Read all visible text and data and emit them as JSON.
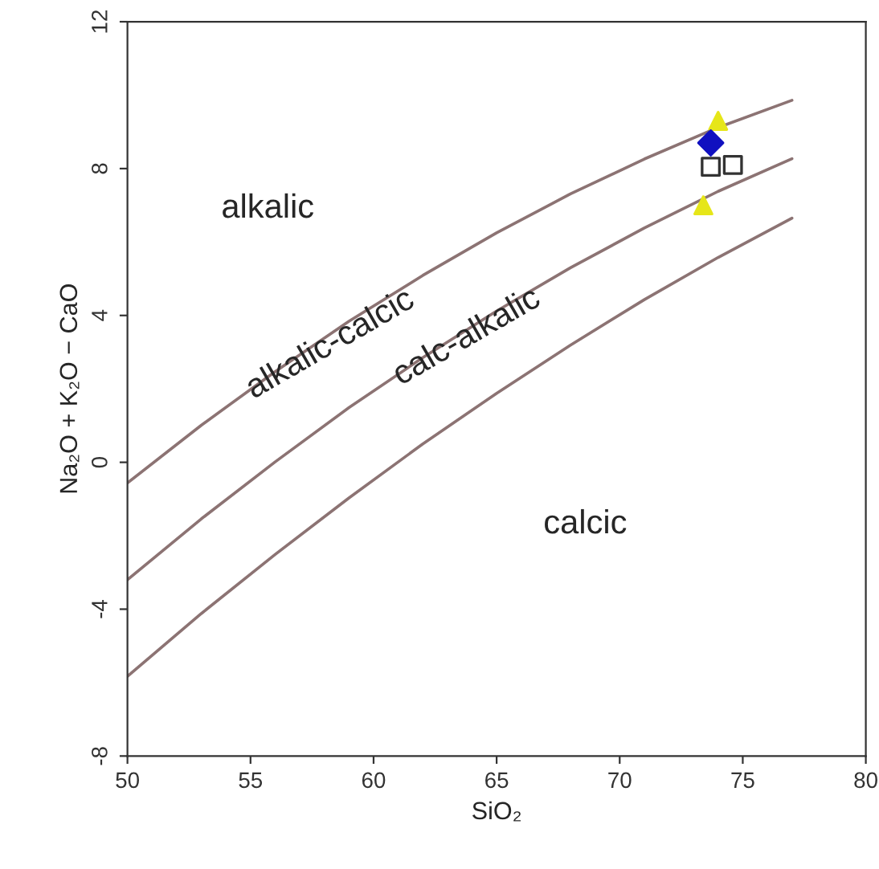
{
  "chart_data": {
    "type": "scatter",
    "xlabel": "SiO₂",
    "ylabel": "Na₂O + K₂O − CaO",
    "xlim": [
      50,
      80
    ],
    "ylim": [
      -8,
      12
    ],
    "xticks": [
      50,
      55,
      60,
      65,
      70,
      75,
      80
    ],
    "yticks": [
      -8,
      -4,
      0,
      4,
      8,
      12
    ],
    "grid": false,
    "legend": false,
    "series": [
      {
        "type": "line",
        "color": "#8c7373",
        "x": [
          50,
          53,
          56,
          59,
          62,
          65,
          68,
          71,
          74,
          77
        ],
        "values": [
          -0.56,
          1.01,
          2.47,
          3.84,
          5.09,
          6.25,
          7.31,
          8.26,
          9.12,
          9.86
        ]
      },
      {
        "type": "line",
        "color": "#8c7373",
        "x": [
          50,
          53,
          56,
          59,
          62,
          65,
          68,
          71,
          74,
          77
        ],
        "values": [
          -3.2,
          -1.54,
          0.01,
          1.49,
          2.85,
          4.12,
          5.3,
          6.38,
          7.38,
          8.27
        ]
      },
      {
        "type": "line",
        "color": "#8c7373",
        "x": [
          50,
          53,
          56,
          59,
          62,
          65,
          68,
          71,
          74,
          77
        ],
        "values": [
          -5.83,
          -4.12,
          -2.51,
          -0.97,
          0.5,
          1.88,
          3.19,
          4.43,
          5.58,
          6.65
        ]
      },
      {
        "marker": "triangle",
        "color": "#e6e619",
        "x": [
          74.0,
          73.4
        ],
        "values": [
          9.3,
          7.0
        ]
      },
      {
        "marker": "diamond",
        "color": "#1010c0",
        "x": [
          73.7
        ],
        "values": [
          8.7
        ]
      },
      {
        "marker": "square",
        "color": "#333333",
        "x": [
          73.7,
          74.6
        ],
        "values": [
          8.05,
          8.1
        ]
      }
    ],
    "annotations": [
      "alkalic",
      "alkalic-calcic",
      "calc-alkalic",
      "calcic"
    ]
  }
}
